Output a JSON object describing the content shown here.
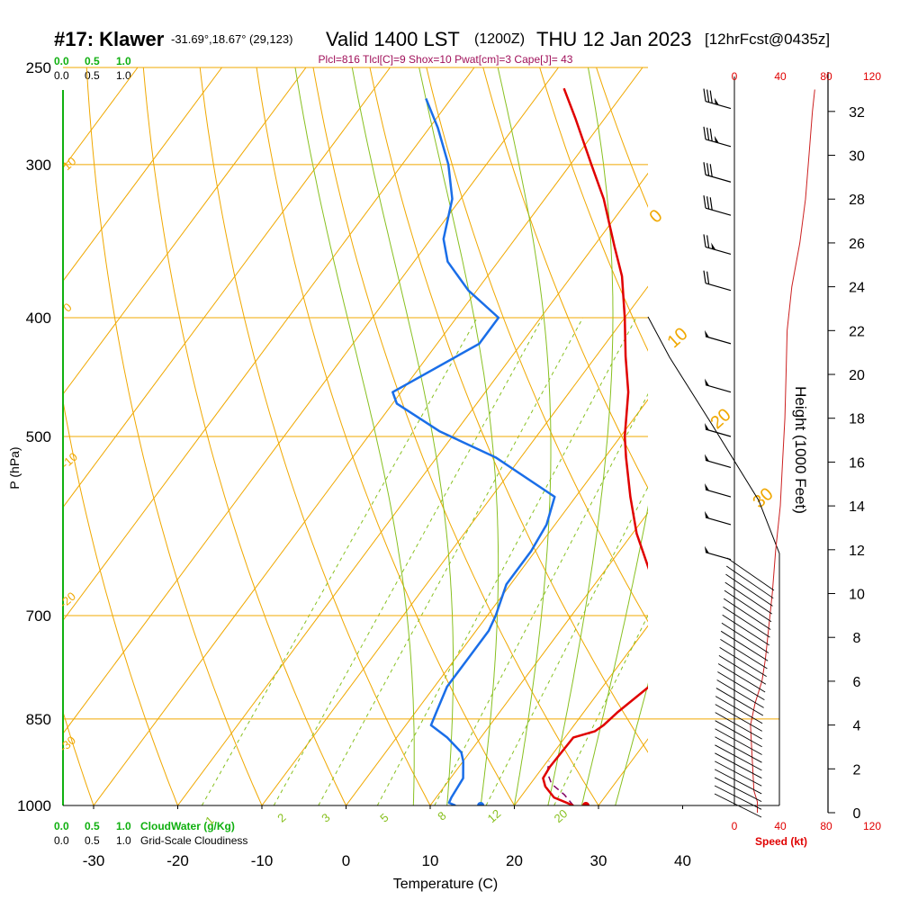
{
  "header": {
    "station": "#17: Klawer",
    "coords": "-31.69°,18.67° (29,123)",
    "valid": "Valid 1400 LST",
    "utc": "(1200Z)",
    "date": "THU 12 Jan 2023",
    "forecast": "[12hrFcst@0435z]",
    "indices": "Plcl=816 Tlcl[C]=9 Shox=10 Pwat[cm]=3 Cape[J]= 43"
  },
  "colors": {
    "temperature": "#e00000",
    "dewpoint": "#1a6ee8",
    "parcel": "#800060",
    "isotherm": "#f0a800",
    "mixing_ratio": "#88c020",
    "cloudwater": "#10b010",
    "wind_speed": "#cc2020",
    "indices": "#a0105a"
  },
  "chart_data": {
    "type": "line",
    "title": "",
    "xlabel": "Temperature (C)",
    "ylabel": "P (hPa)",
    "y2label": "Height (1000 Feet)",
    "x_ticks": [
      -30,
      -20,
      -10,
      0,
      10,
      20,
      30,
      40
    ],
    "p_ticks": [
      250,
      300,
      400,
      500,
      700,
      850,
      1000
    ],
    "height_ticks": [
      0,
      2,
      4,
      6,
      8,
      10,
      12,
      14,
      16,
      18,
      20,
      22,
      24,
      26,
      28,
      30,
      32
    ],
    "speed_ticks": [
      0,
      40,
      80,
      120
    ],
    "speed_label": "Speed (kt)",
    "cloud_ticks": [
      "0.0",
      "0.5",
      "1.0"
    ],
    "cloudwater_label": "CloudWater (g/Kg)",
    "cloudiness_label": "Grid-Scale Cloudiness",
    "isotherm_labels": [
      "10",
      "0",
      "-10",
      "-20",
      "-30",
      "0",
      "10",
      "20",
      "30"
    ],
    "mixing_ratio_labels": [
      "1",
      "2",
      "3",
      "5",
      "8",
      "12",
      "20"
    ],
    "series": [
      {
        "key": "temperature",
        "points": [
          [
            1000,
            27.0
          ],
          [
            985,
            24.0
          ],
          [
            965,
            22.0
          ],
          [
            950,
            21.0
          ],
          [
            930,
            20.8
          ],
          [
            880,
            21.0
          ],
          [
            870,
            23.0
          ],
          [
            860,
            23.5
          ],
          [
            840,
            24.0
          ],
          [
            800,
            25.5
          ],
          [
            770,
            25.8
          ],
          [
            745,
            24.0
          ],
          [
            700,
            21.0
          ],
          [
            650,
            16.0
          ],
          [
            600,
            10.5
          ],
          [
            560,
            6.5
          ],
          [
            520,
            2.5
          ],
          [
            500,
            0.5
          ],
          [
            460,
            -3.0
          ],
          [
            430,
            -6.5
          ],
          [
            400,
            -10.0
          ],
          [
            370,
            -14.0
          ],
          [
            350,
            -17.5
          ],
          [
            320,
            -23.0
          ],
          [
            300,
            -27.5
          ],
          [
            275,
            -33.5
          ],
          [
            260,
            -37.5
          ]
        ]
      },
      {
        "key": "dewpoint",
        "points": [
          [
            1000,
            13.0
          ],
          [
            995,
            12.0
          ],
          [
            985,
            11.8
          ],
          [
            950,
            11.5
          ],
          [
            920,
            10.0
          ],
          [
            905,
            9.0
          ],
          [
            880,
            6.0
          ],
          [
            860,
            3.0
          ],
          [
            840,
            2.5
          ],
          [
            800,
            1.5
          ],
          [
            760,
            1.5
          ],
          [
            720,
            1.5
          ],
          [
            700,
            1.0
          ],
          [
            660,
            -0.5
          ],
          [
            620,
            -0.5
          ],
          [
            590,
            -1.0
          ],
          [
            560,
            -2.5
          ],
          [
            520,
            -13.0
          ],
          [
            495,
            -22.0
          ],
          [
            470,
            -29.5
          ],
          [
            460,
            -31.0
          ],
          [
            420,
            -25.0
          ],
          [
            400,
            -25.0
          ],
          [
            380,
            -31.0
          ],
          [
            360,
            -36.0
          ],
          [
            345,
            -38.5
          ],
          [
            320,
            -41.0
          ],
          [
            300,
            -44.5
          ],
          [
            280,
            -49.0
          ],
          [
            265,
            -53.0
          ]
        ]
      },
      {
        "key": "parcel",
        "points": [
          [
            1000,
            27.0
          ],
          [
            980,
            25.0
          ],
          [
            960,
            22.5
          ],
          [
            940,
            21.0
          ],
          [
            920,
            20.2
          ]
        ]
      }
    ],
    "surface": {
      "temperature": 28.5,
      "dewpoint": 16.0
    },
    "wind_speed_profile": [
      [
        0,
        20
      ],
      [
        0.5,
        20
      ],
      [
        1,
        17
      ],
      [
        2,
        16
      ],
      [
        3,
        15
      ],
      [
        4,
        14
      ],
      [
        5,
        18
      ],
      [
        6,
        24
      ],
      [
        7,
        27
      ],
      [
        8,
        29
      ],
      [
        9,
        31
      ],
      [
        10,
        33
      ],
      [
        12,
        36
      ],
      [
        14,
        40
      ],
      [
        16,
        42
      ],
      [
        18,
        44
      ],
      [
        20,
        45
      ],
      [
        22,
        46
      ],
      [
        24,
        50
      ],
      [
        26,
        57
      ],
      [
        28,
        62
      ],
      [
        30,
        65
      ],
      [
        32,
        68
      ],
      [
        33,
        70
      ]
    ],
    "wind_barbs": [
      {
        "p": 270,
        "speed": 35
      },
      {
        "p": 290,
        "speed": 35
      },
      {
        "p": 310,
        "speed": 30
      },
      {
        "p": 330,
        "speed": 30
      },
      {
        "p": 355,
        "speed": 25
      },
      {
        "p": 380,
        "speed": 20
      },
      {
        "p": 420,
        "speed": 5
      },
      {
        "p": 460,
        "speed": 5
      },
      {
        "p": 500,
        "speed": 5
      },
      {
        "p": 530,
        "speed": 5
      },
      {
        "p": 560,
        "speed": 5
      },
      {
        "p": 590,
        "speed": 5
      },
      {
        "p": 630,
        "speed": 5
      }
    ]
  }
}
